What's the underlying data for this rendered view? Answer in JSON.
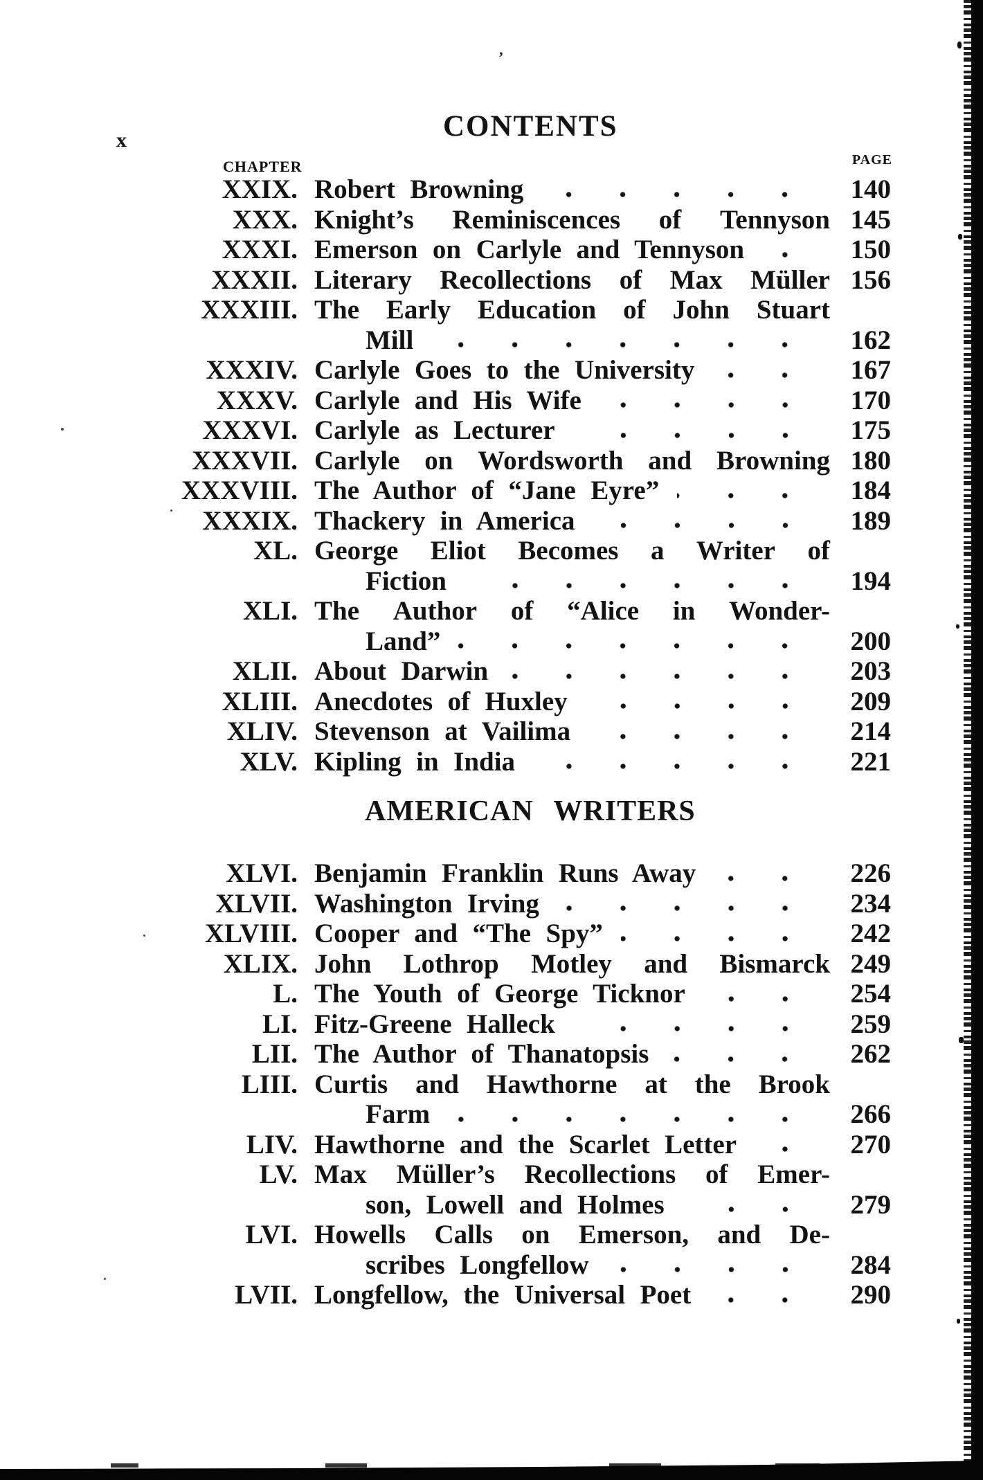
{
  "page": {
    "folio": "x",
    "title": "CONTENTS",
    "chapter_label": "CHAPTER",
    "page_label": "PAGE",
    "section_heading": "AMERICAN WRITERS"
  },
  "colors": {
    "paper": "#ffffff",
    "ink": "#131313",
    "scan_artifact": "#060606"
  },
  "toc": {
    "block1": [
      {
        "num": "XXIX.",
        "title": "Robert Browning",
        "page": "140"
      },
      {
        "num": "XXX.",
        "title": "Knight’s Reminiscences of Tennyson",
        "page": "145",
        "fill": true
      },
      {
        "num": "XXXI.",
        "title": "Emerson on Carlyle and Tennyson",
        "page": "150"
      },
      {
        "num": "XXXII.",
        "title": "Literary Recollections of Max Müller",
        "page": "156",
        "fill": true
      },
      {
        "num": "XXXIII.",
        "title": "The Early Education of John Stuart",
        "cont": "Mill",
        "page": "162"
      },
      {
        "num": "XXXIV.",
        "title": "Carlyle Goes to the University",
        "page": "167"
      },
      {
        "num": "XXXV.",
        "title": "Carlyle and His Wife",
        "page": "170"
      },
      {
        "num": "XXXVI.",
        "title": "Carlyle as Lecturer",
        "page": "175"
      },
      {
        "num": "XXXVII.",
        "title": "Carlyle on Wordsworth and Browning",
        "page": "180",
        "fill": true
      },
      {
        "num": "XXXVIII.",
        "title": "The Author of “Jane Eyre”",
        "page": "184"
      },
      {
        "num": "XXXIX.",
        "title": "Thackery in America",
        "page": "189"
      },
      {
        "num": "XL.",
        "title": "George Eliot Becomes a Writer of",
        "cont": "Fiction",
        "page": "194"
      },
      {
        "num": "XLI.",
        "title": "The Author of “Alice in Wonder-",
        "cont": "Land”",
        "page": "200"
      },
      {
        "num": "XLII.",
        "title": "About Darwin",
        "page": "203"
      },
      {
        "num": "XLIII.",
        "title": "Anecdotes of Huxley",
        "page": "209"
      },
      {
        "num": "XLIV.",
        "title": "Stevenson at Vailima",
        "page": "214"
      },
      {
        "num": "XLV.",
        "title": "Kipling in India",
        "page": "221"
      }
    ],
    "block2": [
      {
        "num": "XLVI.",
        "title": "Benjamin Franklin Runs Away",
        "page": "226"
      },
      {
        "num": "XLVII.",
        "title": "Washington Irving",
        "page": "234"
      },
      {
        "num": "XLVIII.",
        "title": "Cooper and “The Spy”",
        "page": "242"
      },
      {
        "num": "XLIX.",
        "title": "John Lothrop Motley and Bismarck",
        "page": "249",
        "fill": true
      },
      {
        "num": "L.",
        "title": "The Youth of George Ticknor",
        "page": "254"
      },
      {
        "num": "LI.",
        "title": "Fitz-Greene Halleck",
        "page": "259"
      },
      {
        "num": "LII.",
        "title": "The Author of Thanatopsis",
        "page": "262"
      },
      {
        "num": "LIII.",
        "title": "Curtis and Hawthorne at the Brook",
        "cont": "Farm",
        "page": "266"
      },
      {
        "num": "LIV.",
        "title": "Hawthorne and the Scarlet Letter",
        "page": "270"
      },
      {
        "num": "LV.",
        "title": "Max Müller’s Recollections of Emer-",
        "cont": "son, Lowell and Holmes",
        "page": "279"
      },
      {
        "num": "LVI.",
        "title": "Howells Calls on Emerson, and De-",
        "cont": "scribes Longfellow",
        "page": "284"
      },
      {
        "num": "LVII.",
        "title": "Longfellow, the Universal Poet",
        "page": "290"
      }
    ]
  }
}
